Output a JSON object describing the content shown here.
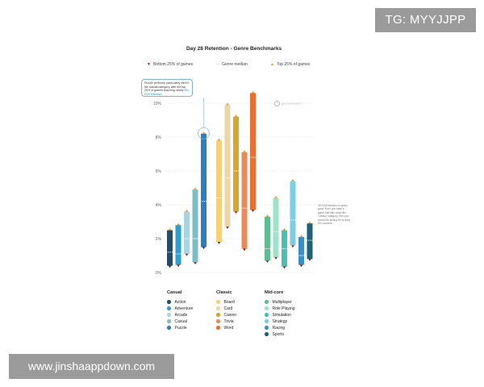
{
  "watermarks": {
    "top": "TG: MYYJJPP",
    "bottom": "www.jinshaappdown.com"
  },
  "brand": "gameanalytics",
  "chart_data": {
    "type": "bar",
    "title": "Day 28 Retention - Genre Benchmarks",
    "legend": {
      "bottom": "Bottom 25% of games",
      "median": "Genre median",
      "top": "Top 25% of games"
    },
    "y_ticks": [
      "0%",
      "2%",
      "4%",
      "6%",
      "8%",
      "10%"
    ],
    "ylim": [
      0,
      10.5
    ],
    "callout": {
      "text": "Puzzle performs particularly well in the casual category, with the top 25% of games reaching nearly",
      "highlight": "8% D28 retention."
    },
    "note": "4% D28 retention is pretty good. But if you have a game that falls under the 'Classic' category, then you should be aiming for at least 8% onwards.",
    "groups": [
      {
        "name": "Casual",
        "series": [
          {
            "name": "Action",
            "color": "#1f4e6e",
            "low": 0.4,
            "median": 1.2,
            "high": 2.5
          },
          {
            "name": "Adventure",
            "color": "#2a9fd0",
            "low": 0.45,
            "median": 1.1,
            "high": 2.8
          },
          {
            "name": "Arcade",
            "color": "#a8d5e2",
            "low": 1.1,
            "median": 2.0,
            "high": 3.6
          },
          {
            "name": "Casual",
            "color": "#7bbfc4",
            "low": 0.6,
            "median": 2.0,
            "high": 4.9
          },
          {
            "name": "Puzzle",
            "color": "#2b7fc1",
            "low": 1.5,
            "median": 4.2,
            "high": 8.2
          }
        ]
      },
      {
        "name": "Classic",
        "series": [
          {
            "name": "Board",
            "color": "#f5d27a",
            "low": 1.8,
            "median": 4.4,
            "high": 7.8
          },
          {
            "name": "Card",
            "color": "#ead6a6",
            "low": 2.7,
            "median": 5.6,
            "high": 9.9
          },
          {
            "name": "Casino",
            "color": "#d9a52b",
            "low": 3.6,
            "median": 6.0,
            "high": 9.2
          },
          {
            "name": "Trivia",
            "color": "#e98a5b",
            "low": 1.4,
            "median": 3.8,
            "high": 7.1
          },
          {
            "name": "Word",
            "color": "#e57034",
            "low": 3.7,
            "median": 6.8,
            "high": 10.6
          }
        ]
      },
      {
        "name": "Mid-core",
        "series": [
          {
            "name": "Multiplayer",
            "color": "#5dbd92",
            "low": 0.7,
            "median": 1.4,
            "high": 3.3
          },
          {
            "name": "Role Playing",
            "color": "#9de3c8",
            "low": 0.9,
            "median": 2.4,
            "high": 4.4
          },
          {
            "name": "Simulation",
            "color": "#49c0b0",
            "low": 0.35,
            "median": 1.4,
            "high": 2.5
          },
          {
            "name": "Strategy",
            "color": "#7fcde0",
            "low": 1.6,
            "median": 3.1,
            "high": 5.4
          },
          {
            "name": "Racing",
            "color": "#3b8fc0",
            "low": 0.45,
            "median": 1.0,
            "high": 2.1
          },
          {
            "name": "Sports",
            "color": "#1e5f7a",
            "low": 0.8,
            "median": 1.9,
            "high": 2.9
          }
        ]
      }
    ]
  }
}
